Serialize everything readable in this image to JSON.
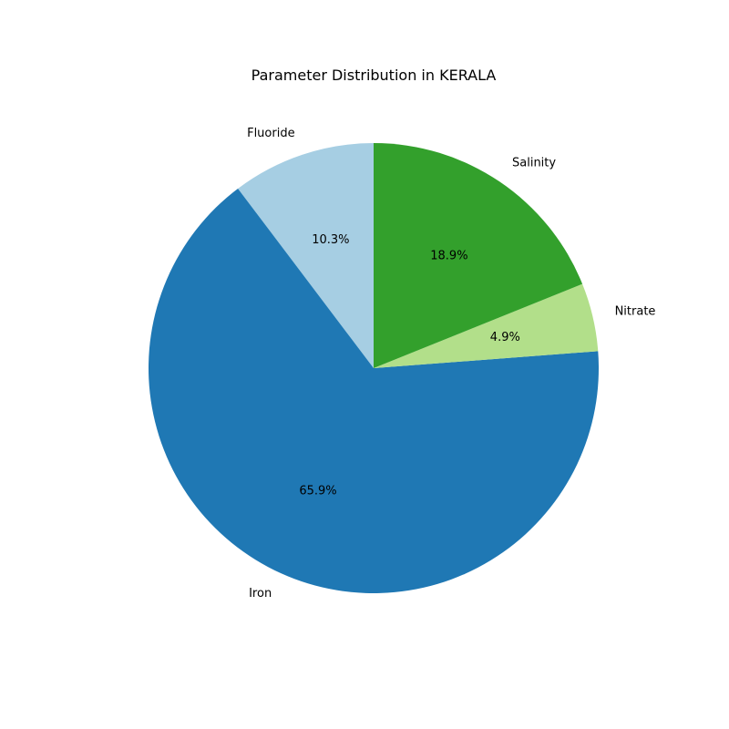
{
  "chart_data": {
    "type": "pie",
    "title": "Parameter Distribution in KERALA",
    "categories": [
      "Fluoride",
      "Iron",
      "Nitrate",
      "Salinity"
    ],
    "values": [
      10.3,
      65.9,
      4.9,
      18.9
    ],
    "value_labels": [
      "10.3%",
      "65.9%",
      "4.9%",
      "18.9%"
    ],
    "colors": [
      "#a6cee3",
      "#1f78b4",
      "#b2df8a",
      "#33a02c"
    ],
    "start_angle_deg": 90,
    "direction": "counterclockwise",
    "legend": "none"
  }
}
